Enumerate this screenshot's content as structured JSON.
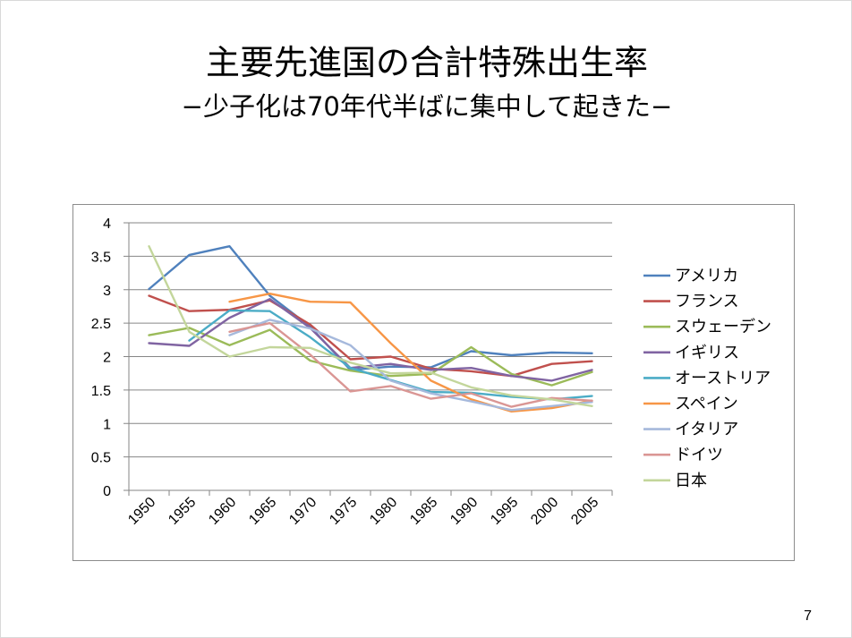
{
  "slide": {
    "title": "主要先進国の合計特殊出生率",
    "subtitle": "−少子化は70年代半ばに集中して起きた−",
    "page_number": "7"
  },
  "chart_data": {
    "type": "line",
    "title": "",
    "xlabel": "",
    "ylabel": "",
    "categories": [
      "1950",
      "1955",
      "1960",
      "1965",
      "1970",
      "1975",
      "1980",
      "1985",
      "1990",
      "1995",
      "2000",
      "2005"
    ],
    "ylim": [
      0,
      4
    ],
    "yticks": [
      "0",
      "0.5",
      "1",
      "1.5",
      "2",
      "2.5",
      "3",
      "3.5",
      "4"
    ],
    "grid": "horizontal",
    "legend_position": "right",
    "series": [
      {
        "name": "アメリカ",
        "color": "#4F81BD",
        "values": [
          3.01,
          3.52,
          3.65,
          2.91,
          2.45,
          1.8,
          1.85,
          1.84,
          2.08,
          2.02,
          2.06,
          2.05
        ]
      },
      {
        "name": "フランス",
        "color": "#C0504D",
        "values": [
          2.91,
          2.68,
          2.7,
          2.84,
          2.48,
          1.96,
          2.0,
          1.82,
          1.78,
          1.71,
          1.89,
          1.93
        ]
      },
      {
        "name": "スウェーデン",
        "color": "#9BBB59",
        "values": [
          2.32,
          2.43,
          2.17,
          2.4,
          1.94,
          1.79,
          1.71,
          1.74,
          2.14,
          1.74,
          1.57,
          1.77
        ]
      },
      {
        "name": "イギリス",
        "color": "#8064A2",
        "values": [
          2.2,
          2.16,
          2.58,
          2.86,
          2.43,
          1.83,
          1.89,
          1.8,
          1.83,
          1.71,
          1.64,
          1.8
        ]
      },
      {
        "name": "オーストリア",
        "color": "#4BACC6",
        "values": [
          null,
          2.24,
          2.69,
          2.68,
          2.29,
          1.83,
          1.65,
          1.47,
          1.46,
          1.4,
          1.36,
          1.41
        ]
      },
      {
        "name": "スペイン",
        "color": "#F79646",
        "values": [
          null,
          null,
          2.82,
          2.94,
          2.82,
          2.81,
          2.2,
          1.64,
          1.36,
          1.18,
          1.23,
          1.34
        ]
      },
      {
        "name": "イタリア",
        "color": "#A6B9DC",
        "values": [
          null,
          null,
          2.32,
          2.55,
          2.42,
          2.17,
          1.64,
          1.45,
          1.33,
          1.2,
          1.26,
          1.32
        ]
      },
      {
        "name": "ドイツ",
        "color": "#DA9694",
        "values": [
          null,
          null,
          2.37,
          2.5,
          2.03,
          1.48,
          1.56,
          1.37,
          1.45,
          1.25,
          1.38,
          1.34
        ]
      },
      {
        "name": "日本",
        "color": "#C3D69B",
        "values": [
          3.65,
          2.37,
          2.0,
          2.14,
          2.13,
          1.91,
          1.75,
          1.76,
          1.54,
          1.42,
          1.36,
          1.26
        ]
      }
    ]
  }
}
